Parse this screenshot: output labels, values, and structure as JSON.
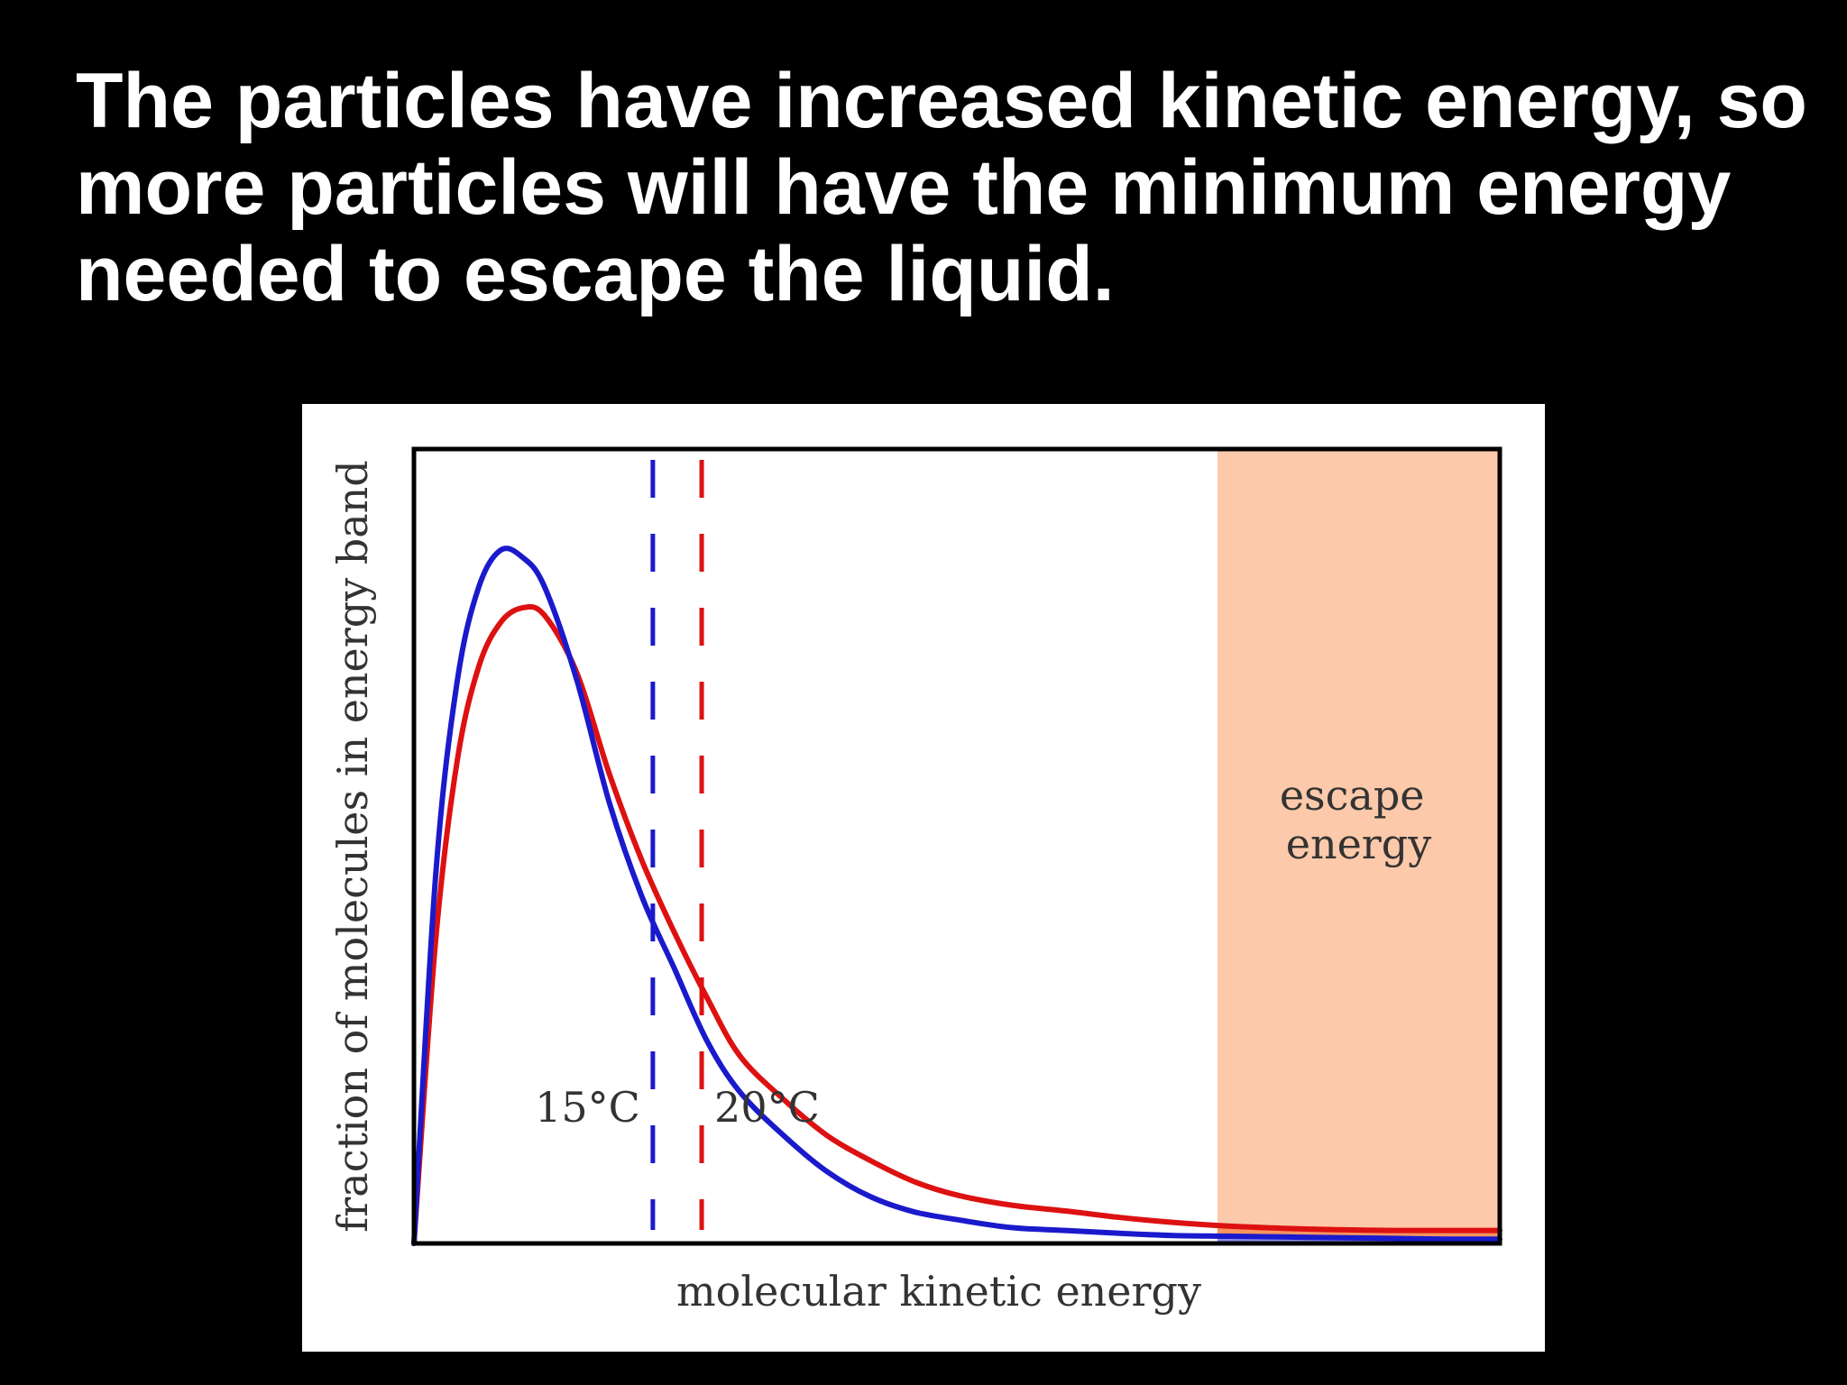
{
  "slide": {
    "title": "The particles have increased kinetic energy, so more particles will have the minimum energy needed to escape the liquid."
  },
  "chart_data": {
    "type": "line",
    "title": "",
    "xlabel": "molecular kinetic energy",
    "ylabel": "fraction of molecules in energy band",
    "xlim": [
      0,
      100
    ],
    "ylim": [
      0,
      100
    ],
    "grid": false,
    "legend": "none",
    "x": [
      0,
      2,
      4,
      6,
      8,
      10,
      12,
      15,
      18,
      21,
      24,
      27,
      30,
      34,
      38,
      42,
      46,
      50,
      55,
      60,
      65,
      70,
      75,
      80,
      85,
      90,
      95,
      100
    ],
    "series": [
      {
        "name": "15°C",
        "color": "#1a1acc",
        "values": [
          0,
          51,
          78,
          91,
          96,
          95,
          91,
          78,
          61,
          48,
          38,
          28,
          21,
          15,
          10,
          6.5,
          4.4,
          3.3,
          2.2,
          1.8,
          1.4,
          1.1,
          1.0,
          0.9,
          0.8,
          0.7,
          0.6,
          0.6
        ]
      },
      {
        "name": "20°C",
        "color": "#dd1111",
        "values": [
          0,
          42,
          67,
          80,
          86,
          88,
          87,
          79,
          65,
          53,
          43,
          34,
          26,
          20,
          15,
          11.5,
          8.6,
          6.7,
          5.3,
          4.5,
          3.6,
          2.9,
          2.4,
          2.1,
          1.9,
          1.8,
          1.8,
          1.8
        ]
      }
    ],
    "markers": [
      {
        "label": "15°C",
        "x": 22,
        "color": "#1a1acc"
      },
      {
        "label": "20°C",
        "x": 26.5,
        "color": "#dd1111"
      }
    ],
    "region": {
      "label_line1": "escape",
      "label_line2": "energy",
      "x_start": 74,
      "x_end": 100,
      "color": "#fcc9aa"
    },
    "tail_fill": {
      "red_color": "#f7945f",
      "blue_color": "#8f8ff0"
    }
  }
}
